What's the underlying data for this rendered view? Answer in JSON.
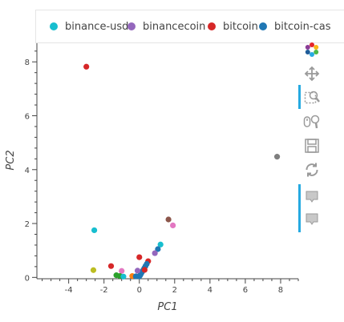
{
  "legend": [
    {
      "label": "binance-usd",
      "color": "#17becf"
    },
    {
      "label": "binancecoin",
      "color": "#9467bd"
    },
    {
      "label": "bitcoin",
      "color": "#d62728"
    },
    {
      "label": "bitcoin-cas",
      "color": "#1f77b4"
    }
  ],
  "toolbar": {
    "tools": [
      "bokeh-logo-icon",
      "pan-icon",
      "box-zoom-icon",
      "wheel-zoom-icon",
      "save-icon",
      "reset-icon",
      "hover-icon",
      "hover-icon"
    ]
  },
  "chart_data": {
    "type": "scatter",
    "xlabel": "PC1",
    "ylabel": "PC2",
    "xlim": [
      -5.8,
      9.0
    ],
    "ylim": [
      -0.05,
      8.75
    ],
    "xticks": [
      -4,
      -2,
      0,
      2,
      4,
      6,
      8
    ],
    "yticks": [
      0,
      2,
      4,
      6,
      8
    ],
    "grid": false,
    "legend_position": "top",
    "points": [
      {
        "x": -3.0,
        "y": 7.82,
        "color": "#d62728"
      },
      {
        "x": 7.8,
        "y": 4.48,
        "color": "#7f7f7f"
      },
      {
        "x": -2.55,
        "y": 1.75,
        "color": "#17becf"
      },
      {
        "x": 1.65,
        "y": 2.15,
        "color": "#8c564b"
      },
      {
        "x": 1.9,
        "y": 1.93,
        "color": "#e377c2"
      },
      {
        "x": 1.2,
        "y": 1.22,
        "color": "#17becf"
      },
      {
        "x": 1.05,
        "y": 1.05,
        "color": "#1f77b4"
      },
      {
        "x": 0.88,
        "y": 0.9,
        "color": "#9467bd"
      },
      {
        "x": 0.0,
        "y": 0.75,
        "color": "#d62728"
      },
      {
        "x": 0.5,
        "y": 0.6,
        "color": "#d62728"
      },
      {
        "x": 0.42,
        "y": 0.5,
        "color": "#1f77b4"
      },
      {
        "x": 0.35,
        "y": 0.42,
        "color": "#1f77b4"
      },
      {
        "x": 0.28,
        "y": 0.34,
        "color": "#1f77b4"
      },
      {
        "x": 0.22,
        "y": 0.27,
        "color": "#1f77b4"
      },
      {
        "x": 0.15,
        "y": 0.2,
        "color": "#1f77b4"
      },
      {
        "x": 0.1,
        "y": 0.14,
        "color": "#1f77b4"
      },
      {
        "x": 0.05,
        "y": 0.08,
        "color": "#1f77b4"
      },
      {
        "x": 0.0,
        "y": 0.04,
        "color": "#1f77b4"
      },
      {
        "x": 0.3,
        "y": 0.28,
        "color": "#d62728"
      },
      {
        "x": -0.1,
        "y": 0.25,
        "color": "#9467bd"
      },
      {
        "x": -1.6,
        "y": 0.42,
        "color": "#d62728"
      },
      {
        "x": -1.0,
        "y": 0.24,
        "color": "#e377c2"
      },
      {
        "x": -2.6,
        "y": 0.27,
        "color": "#bcbd22"
      },
      {
        "x": -1.3,
        "y": 0.08,
        "color": "#2ca02c"
      },
      {
        "x": -1.1,
        "y": 0.05,
        "color": "#2ca02c"
      },
      {
        "x": -0.9,
        "y": 0.03,
        "color": "#17becf"
      },
      {
        "x": -0.4,
        "y": 0.05,
        "color": "#ff7f0e"
      },
      {
        "x": -0.2,
        "y": 0.04,
        "color": "#1f77b4"
      }
    ]
  }
}
